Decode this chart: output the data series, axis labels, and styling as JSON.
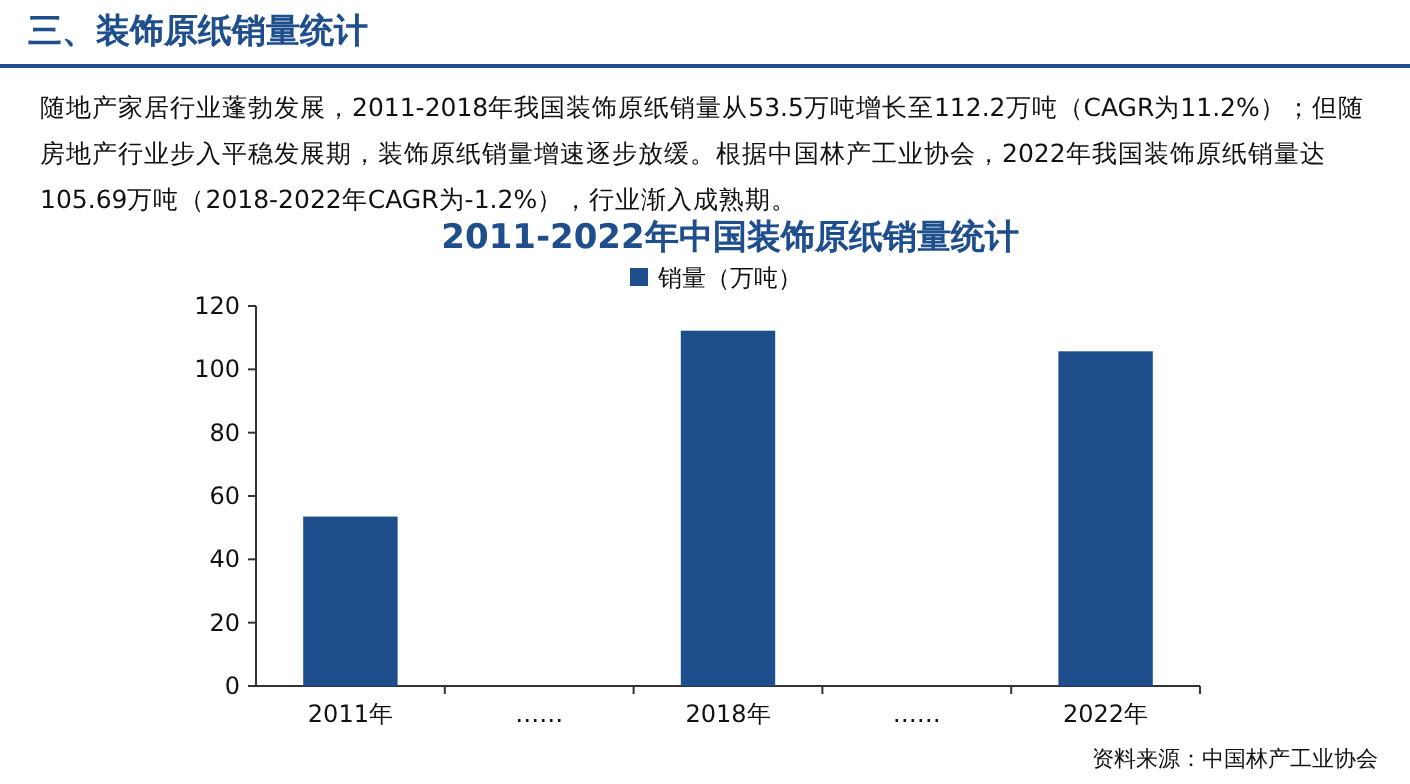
{
  "chart_data": {
    "type": "bar",
    "title": "2011-2022年中国装饰原纸销量统计",
    "annotations": [
      "三、装饰原纸销量统计",
      "随地产家居行业蓬勃发展，2011-2018年我国装饰原纸销量从53.5万吨增长至112.2万吨（CAGR为11.2%）；但随房地产行业步入平稳发展期，装饰原纸销量增速逐步放缓。根据中国林产工业协会，2022年我国装饰原纸销量达105.69万吨（2018-2022年CAGR为-1.2%），行业渐入成熟期。",
      "资料来源：中国林产工业协会"
    ],
    "categories": [
      "2011年",
      "……",
      "2018年",
      "……",
      "2022年"
    ],
    "series": [
      {
        "name": "销量（万吨）",
        "color": "#1f4e8c",
        "values": [
          53.5,
          null,
          112.2,
          null,
          105.69
        ]
      }
    ],
    "ylim": [
      0,
      120
    ],
    "yticks": [
      0,
      20,
      40,
      60,
      80,
      100,
      120
    ],
    "legend": "top"
  }
}
